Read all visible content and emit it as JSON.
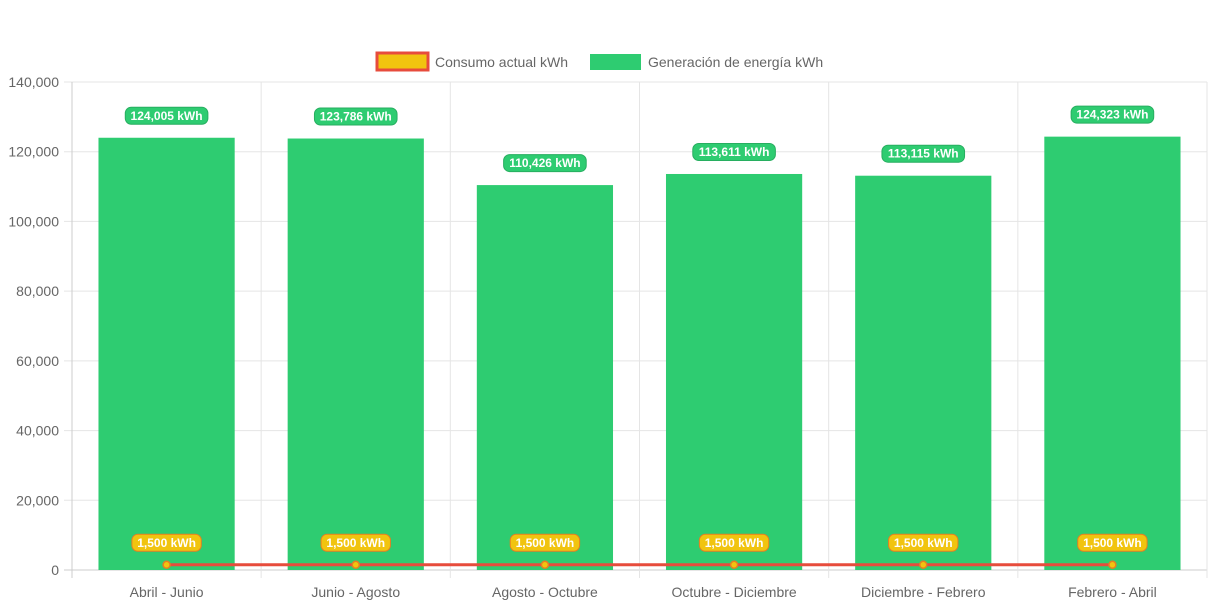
{
  "chart_data": {
    "type": "bar",
    "categories": [
      "Abril - Junio",
      "Junio - Agosto",
      "Agosto - Octubre",
      "Octubre - Diciembre",
      "Diciembre - Febrero",
      "Febrero - Abril"
    ],
    "series": [
      {
        "name": "Consumo actual kWh",
        "type": "line",
        "values": [
          1500,
          1500,
          1500,
          1500,
          1500,
          1500
        ],
        "labels": [
          "1,500 kWh",
          "1,500 kWh",
          "1,500 kWh",
          "1,500 kWh",
          "1,500 kWh",
          "1,500 kWh"
        ],
        "line_color": "#e74c3c",
        "fill_color": "#f1c40f"
      },
      {
        "name": "Generación de energía kWh",
        "type": "bar",
        "values": [
          124005,
          123786,
          110426,
          113611,
          113115,
          124323
        ],
        "labels": [
          "124,005 kWh",
          "123,786 kWh",
          "110,426 kWh",
          "113,611 kWh",
          "113,115 kWh",
          "124,323 kWh"
        ],
        "color": "#2ecc71"
      }
    ],
    "yticks": [
      "0",
      "20,000",
      "40,000",
      "60,000",
      "80,000",
      "100,000",
      "120,000",
      "140,000"
    ],
    "ylim": [
      0,
      140000
    ],
    "grid": true,
    "legend_position": "top-center"
  }
}
